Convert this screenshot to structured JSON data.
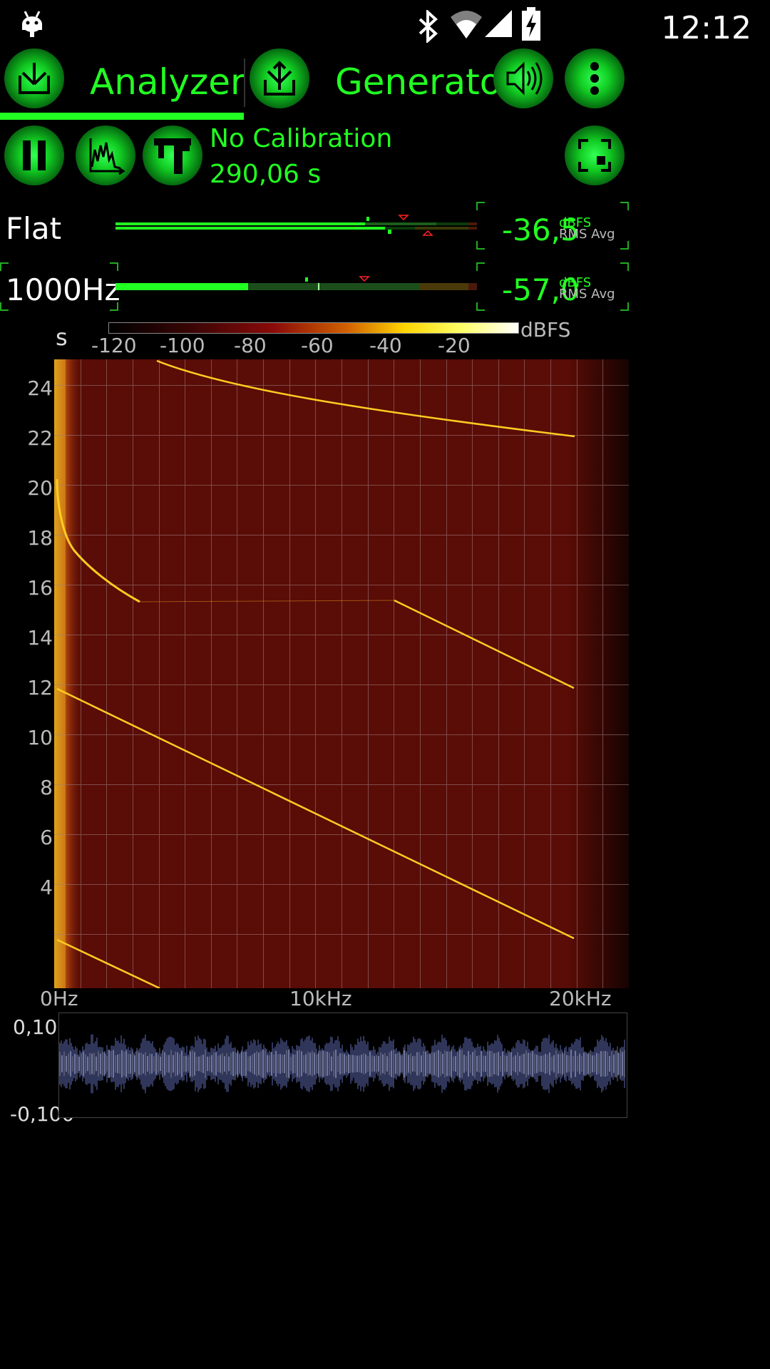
{
  "status_bar": {
    "time": "12:12"
  },
  "tabs": {
    "analyzer": {
      "label": "Analyzer",
      "active": true
    },
    "generator": {
      "label": "Generator"
    }
  },
  "toolbar": {
    "calibration": "No Calibration",
    "elapsed": "290,06 s"
  },
  "meters": [
    {
      "name": "Flat",
      "value": "-36,5",
      "unit": "dBFS",
      "sub": "RMS Avg"
    },
    {
      "name": "1000Hz",
      "value": "-57,0",
      "unit": "dBFS",
      "sub": "RMS Avg"
    }
  ],
  "colorbar": {
    "y_label": "s",
    "unit_label": "dBFS",
    "ticks": [
      "-120",
      "-100",
      "-80",
      "-60",
      "-40",
      "-20"
    ]
  },
  "spectrogram": {
    "y_ticks": [
      "24",
      "22",
      "20",
      "18",
      "16",
      "14",
      "12",
      "10",
      "8",
      "6",
      "4"
    ],
    "x_ticks": [
      "0Hz",
      "10kHz",
      "20kHz"
    ]
  },
  "waveform": {
    "y_max": "0,100",
    "y_min": "-0,100"
  },
  "colors": {
    "accent": "#22ff22",
    "background": "#000000",
    "spectrogram_bg": "#5a0c06",
    "trace": "#ffcc22",
    "waveform": "#8899ff"
  },
  "icons": {
    "android": "android-icon",
    "bluetooth": "bluetooth-icon",
    "wifi": "wifi-icon",
    "signal": "signal-icon",
    "battery": "battery-charging-icon",
    "analyzer": "input-tray-icon",
    "generator": "output-arrows-icon",
    "speaker": "speaker-icon",
    "menu": "more-vert-icon",
    "pause": "pause-icon",
    "spectrum": "spectrum-chart-icon",
    "calibrate": "caliper-icon",
    "fullscreen": "fullscreen-icon"
  }
}
